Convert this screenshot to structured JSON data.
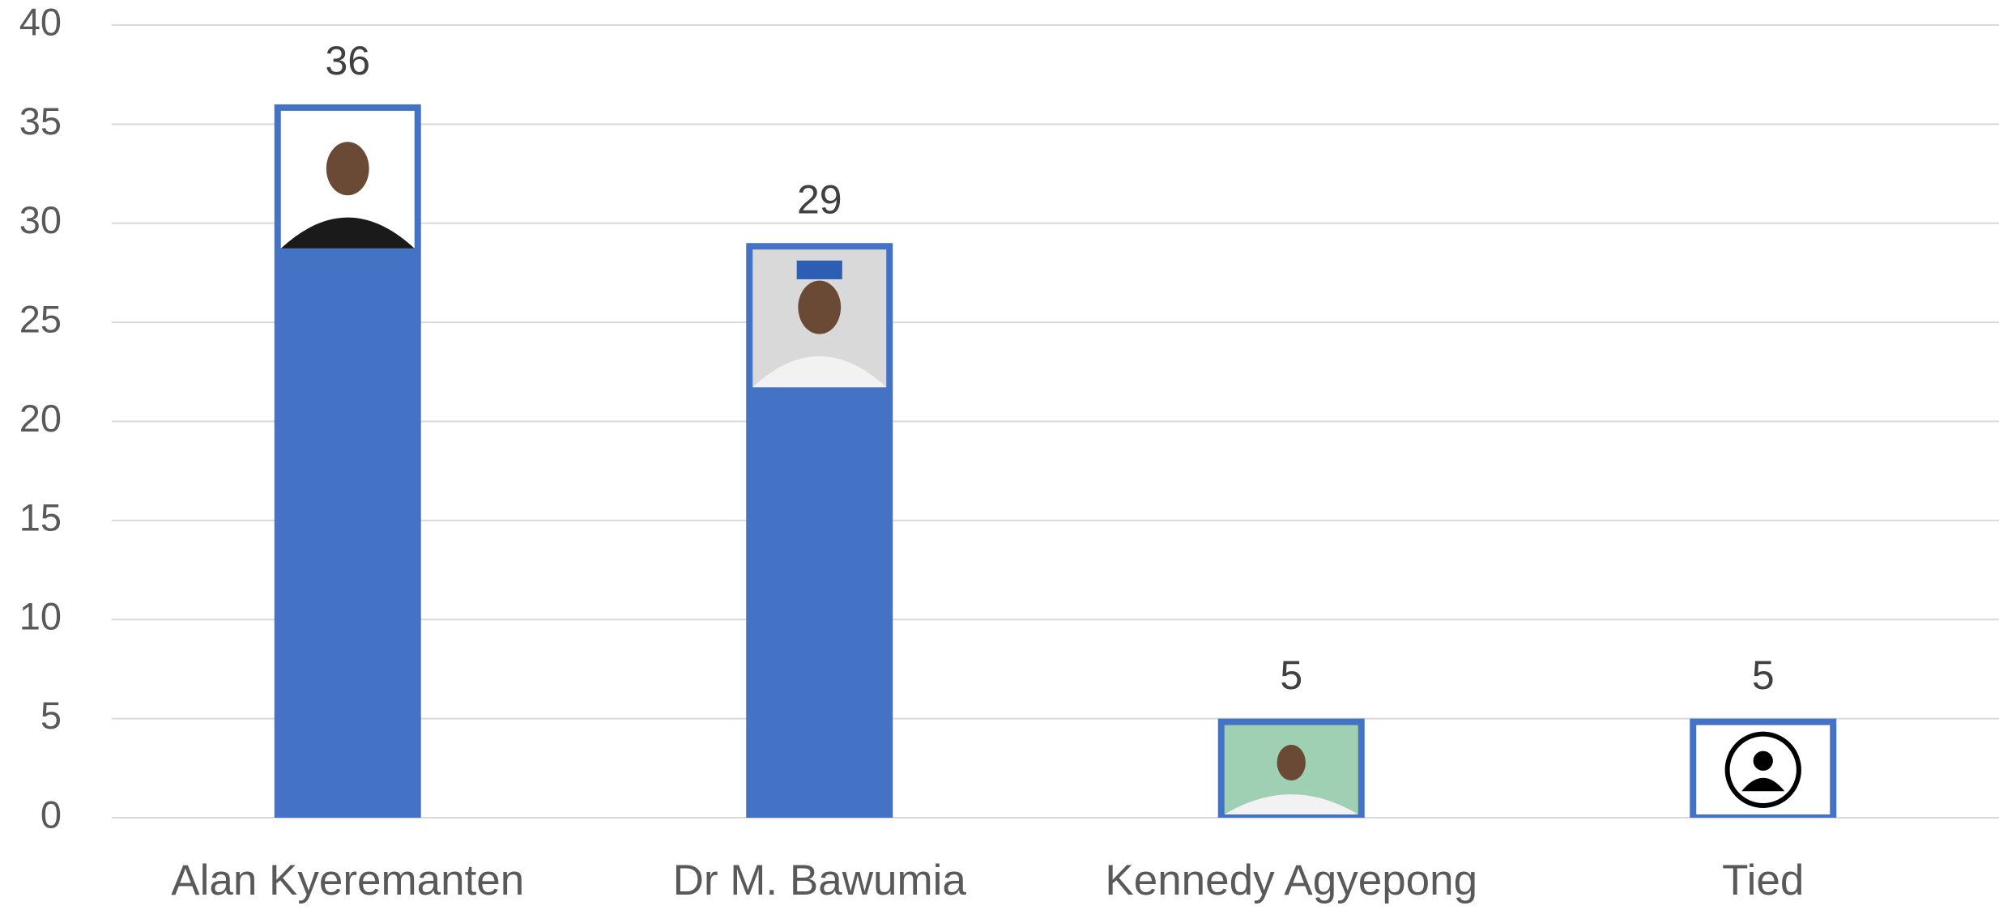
{
  "chart_data": {
    "type": "bar",
    "categories": [
      "Alan Kyeremanten",
      "Dr M. Bawumia",
      "Kennedy Agyepong",
      "Tied"
    ],
    "values": [
      36,
      29,
      5,
      5
    ],
    "color": "#4472c4",
    "ylim": [
      0,
      40
    ],
    "yticks": [
      0,
      5,
      10,
      15,
      20,
      25,
      30,
      35,
      40
    ],
    "grid": true
  }
}
